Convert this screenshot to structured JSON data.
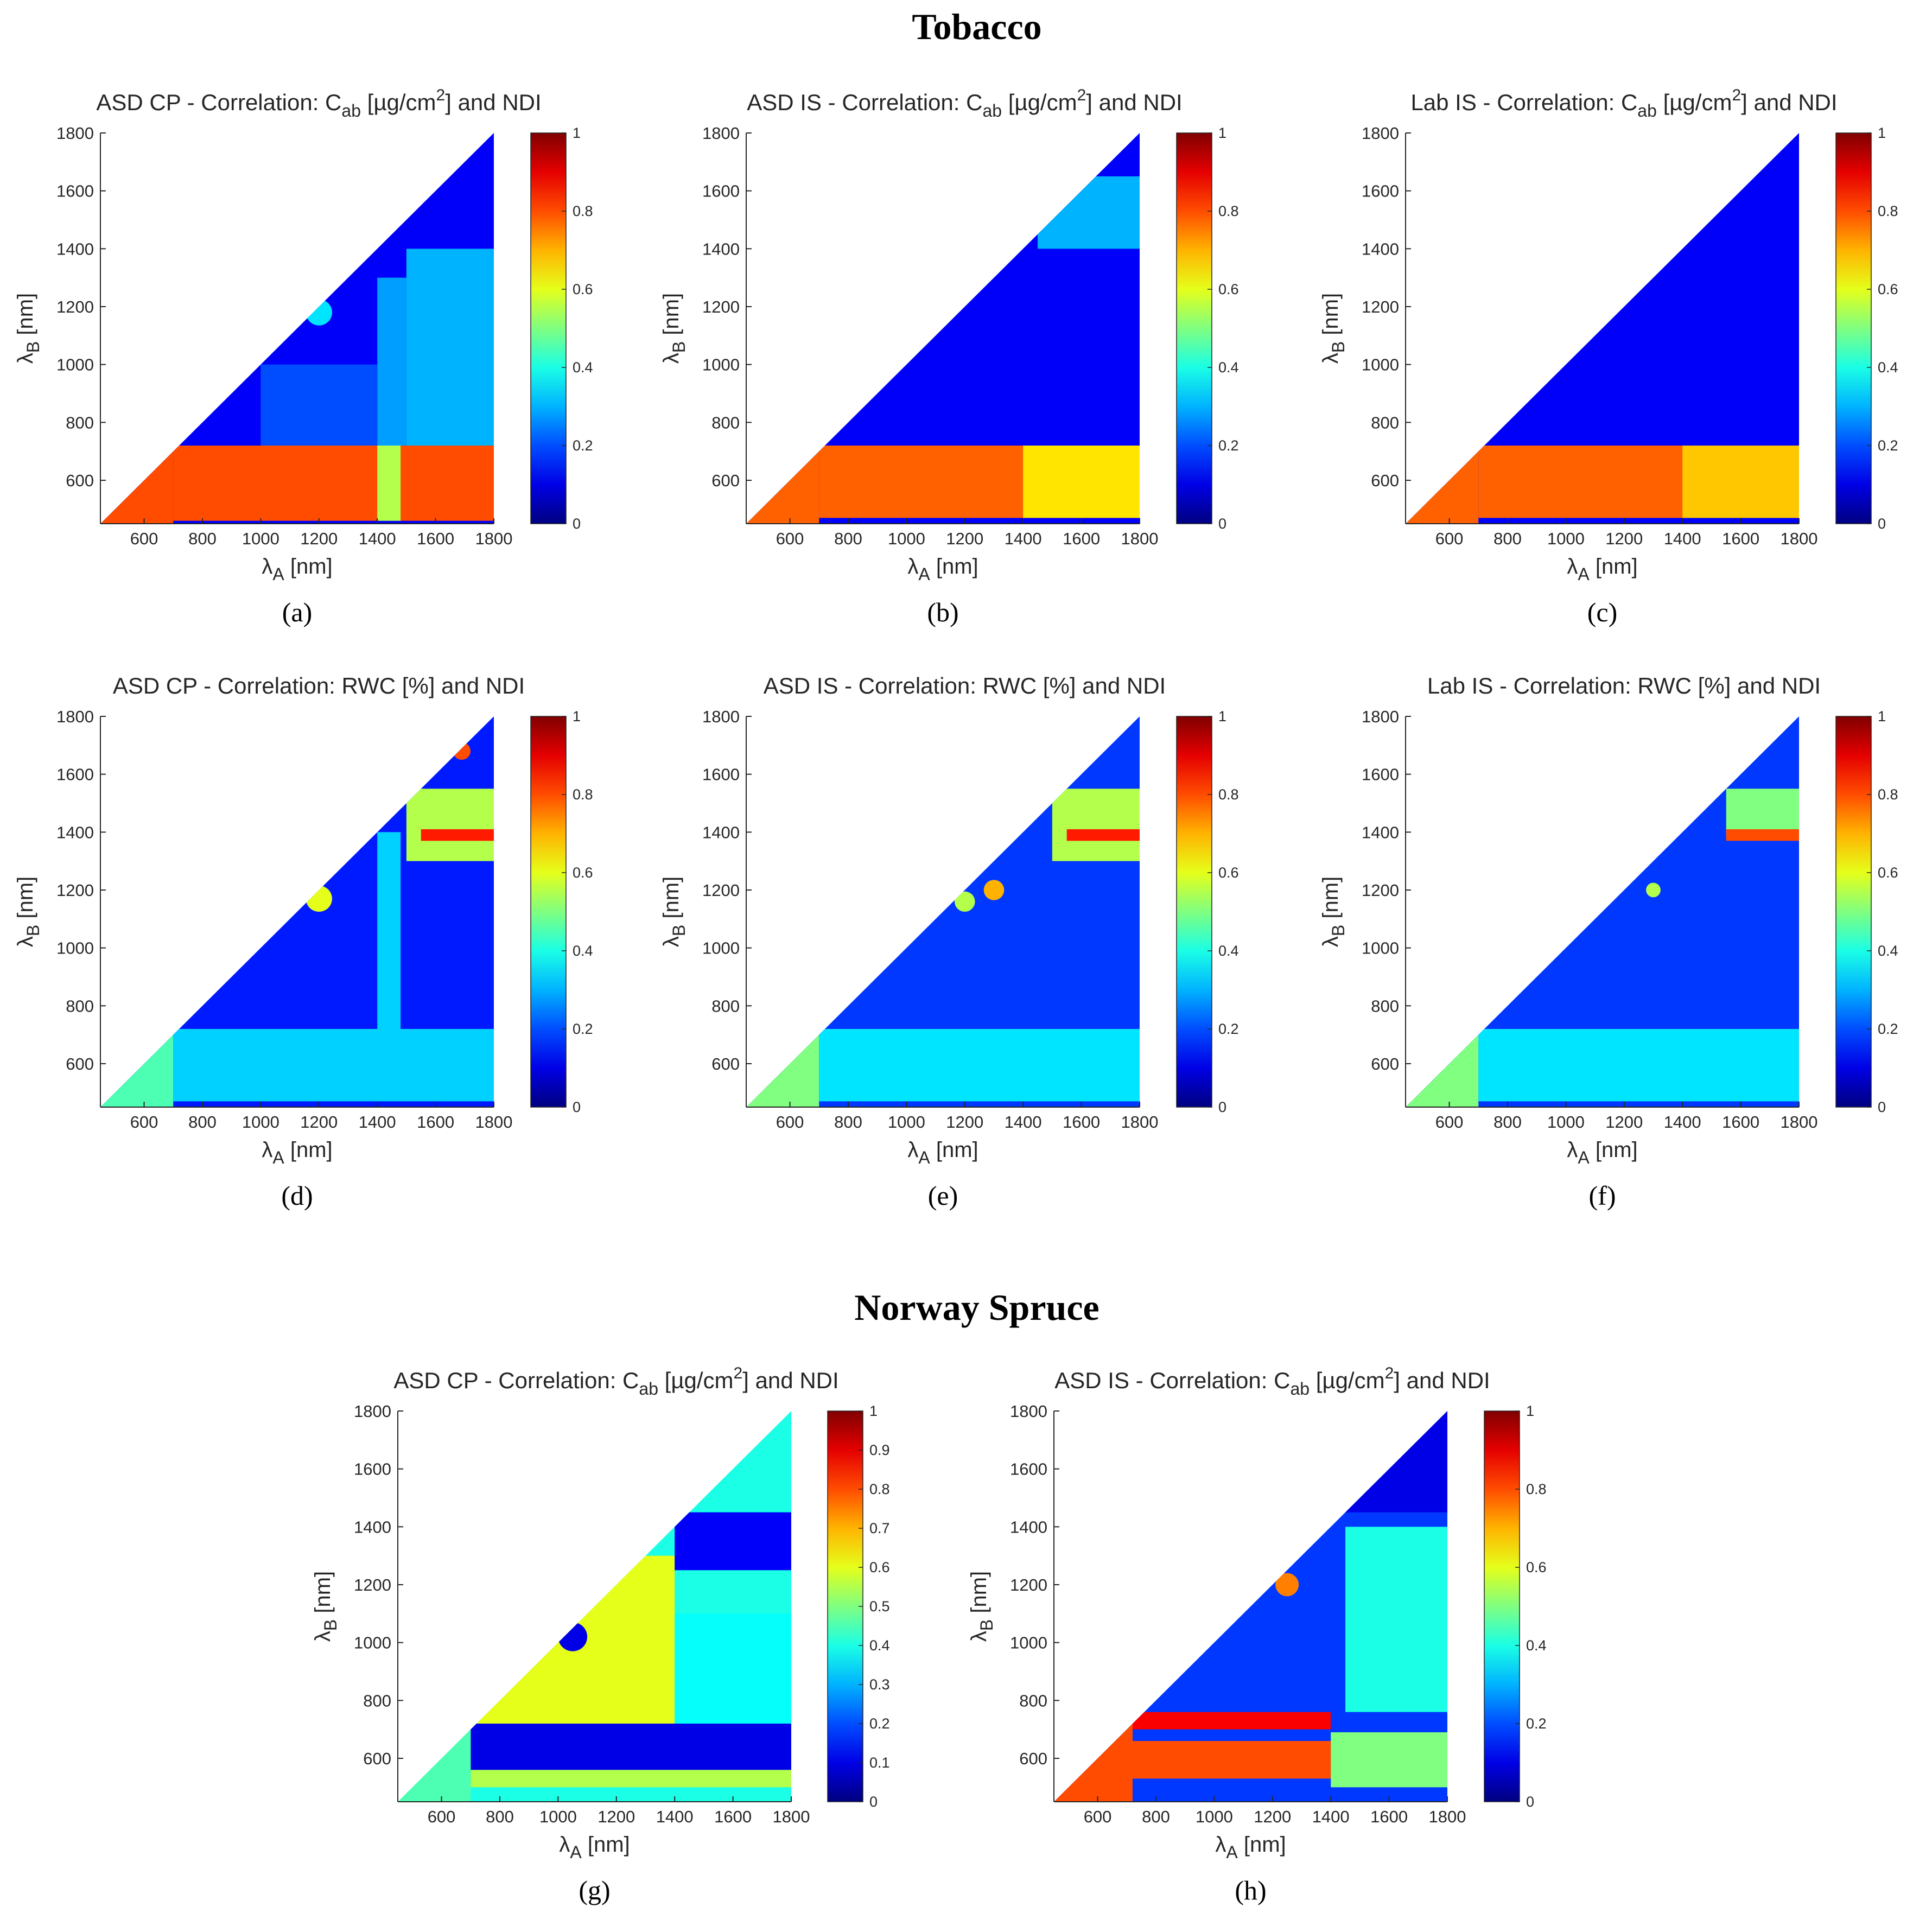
{
  "sections": [
    {
      "title": "Tobacco"
    },
    {
      "title": "Norway Spruce"
    }
  ],
  "chart_data": [
    {
      "type": "heatmap",
      "label": "(a)",
      "title_prefix": "ASD CP - Correlation: ",
      "variable": "C_ab",
      "unit": "µg/cm²",
      "title_suffix": "and NDI",
      "xlabel": "λ_A [nm]",
      "ylabel": "λ_B [nm]",
      "xlim": [
        450,
        1800
      ],
      "ylim": [
        450,
        1800
      ],
      "xticks": [
        600,
        800,
        1000,
        1200,
        1400,
        1600,
        1800
      ],
      "yticks": [
        600,
        800,
        1000,
        1200,
        1400,
        1600,
        1800
      ],
      "colorbar": {
        "min": 0,
        "max": 1,
        "ticks": [
          0,
          0.2,
          0.4,
          0.6,
          0.8,
          1
        ]
      },
      "base_value": 0.12,
      "features": [
        {
          "kind": "box",
          "x": [
            700,
            1800
          ],
          "y": [
            460,
            720
          ],
          "value": 0.8
        },
        {
          "kind": "box",
          "x": [
            1400,
            1480
          ],
          "y": [
            460,
            720
          ],
          "value": 0.55
        },
        {
          "kind": "box",
          "x": [
            1400,
            1500
          ],
          "y": [
            720,
            1300
          ],
          "value": 0.28
        },
        {
          "kind": "box",
          "x": [
            1500,
            1800
          ],
          "y": [
            720,
            1400
          ],
          "value": 0.3
        },
        {
          "kind": "box",
          "x": [
            1000,
            1400
          ],
          "y": [
            720,
            1000
          ],
          "value": 0.2
        },
        {
          "kind": "spot",
          "x": 1200,
          "y": 1180,
          "r": 45,
          "value": 0.35
        },
        {
          "kind": "diag",
          "x": [
            450,
            700
          ],
          "value": 0.8
        }
      ]
    },
    {
      "type": "heatmap",
      "label": "(b)",
      "title_prefix": "ASD IS - Correlation: ",
      "variable": "C_ab",
      "unit": "µg/cm²",
      "title_suffix": "and NDI",
      "xlabel": "λ_A [nm]",
      "ylabel": "λ_B [nm]",
      "xlim": [
        450,
        1800
      ],
      "ylim": [
        450,
        1800
      ],
      "xticks": [
        600,
        800,
        1000,
        1200,
        1400,
        1600,
        1800
      ],
      "yticks": [
        600,
        800,
        1000,
        1200,
        1400,
        1600,
        1800
      ],
      "colorbar": {
        "min": 0,
        "max": 1,
        "ticks": [
          0,
          0.2,
          0.4,
          0.6,
          0.8,
          1
        ]
      },
      "base_value": 0.12,
      "features": [
        {
          "kind": "box",
          "x": [
            700,
            1800
          ],
          "y": [
            470,
            720
          ],
          "value": 0.78
        },
        {
          "kind": "box",
          "x": [
            1400,
            1800
          ],
          "y": [
            470,
            720
          ],
          "value": 0.65
        },
        {
          "kind": "box",
          "x": [
            1450,
            1800
          ],
          "y": [
            1400,
            1650
          ],
          "value": 0.3
        },
        {
          "kind": "diag",
          "x": [
            450,
            700
          ],
          "value": 0.78
        }
      ]
    },
    {
      "type": "heatmap",
      "label": "(c)",
      "title_prefix": "Lab IS - Correlation: ",
      "variable": "C_ab",
      "unit": "µg/cm²",
      "title_suffix": "and NDI",
      "xlabel": "λ_A [nm]",
      "ylabel": "λ_B [nm]",
      "xlim": [
        450,
        1800
      ],
      "ylim": [
        450,
        1800
      ],
      "xticks": [
        600,
        800,
        1000,
        1200,
        1400,
        1600,
        1800
      ],
      "yticks": [
        600,
        800,
        1000,
        1200,
        1400,
        1600,
        1800
      ],
      "colorbar": {
        "min": 0,
        "max": 1,
        "ticks": [
          0,
          0.2,
          0.4,
          0.6,
          0.8,
          1
        ]
      },
      "base_value": 0.12,
      "features": [
        {
          "kind": "box",
          "x": [
            700,
            1800
          ],
          "y": [
            470,
            720
          ],
          "value": 0.78
        },
        {
          "kind": "box",
          "x": [
            1400,
            1800
          ],
          "y": [
            470,
            720
          ],
          "value": 0.68
        },
        {
          "kind": "diag",
          "x": [
            450,
            700
          ],
          "value": 0.78
        }
      ]
    },
    {
      "type": "heatmap",
      "label": "(d)",
      "title_prefix": "ASD CP - Correlation: ",
      "variable": "RWC",
      "unit": "%",
      "title_suffix": "and NDI",
      "xlabel": "λ_A [nm]",
      "ylabel": "λ_B [nm]",
      "xlim": [
        450,
        1800
      ],
      "ylim": [
        450,
        1800
      ],
      "xticks": [
        600,
        800,
        1000,
        1200,
        1400,
        1600,
        1800
      ],
      "yticks": [
        600,
        800,
        1000,
        1200,
        1400,
        1600,
        1800
      ],
      "colorbar": {
        "min": 0,
        "max": 1,
        "ticks": [
          0,
          0.2,
          0.4,
          0.6,
          0.8,
          1
        ]
      },
      "base_value": 0.15,
      "features": [
        {
          "kind": "box",
          "x": [
            700,
            1800
          ],
          "y": [
            470,
            720
          ],
          "value": 0.33
        },
        {
          "kind": "box",
          "x": [
            1400,
            1480
          ],
          "y": [
            720,
            1400
          ],
          "value": 0.33
        },
        {
          "kind": "box",
          "x": [
            1500,
            1800
          ],
          "y": [
            1300,
            1550
          ],
          "value": 0.55
        },
        {
          "kind": "box",
          "x": [
            1550,
            1800
          ],
          "y": [
            1370,
            1410
          ],
          "value": 0.85
        },
        {
          "kind": "spot",
          "x": 1200,
          "y": 1170,
          "r": 45,
          "value": 0.6
        },
        {
          "kind": "spot",
          "x": 1690,
          "y": 1680,
          "r": 30,
          "value": 0.8
        },
        {
          "kind": "diag",
          "x": [
            450,
            700
          ],
          "value": 0.45
        }
      ]
    },
    {
      "type": "heatmap",
      "label": "(e)",
      "title_prefix": "ASD IS - Correlation: ",
      "variable": "RWC",
      "unit": "%",
      "title_suffix": "and NDI",
      "xlabel": "λ_A [nm]",
      "ylabel": "λ_B [nm]",
      "xlim": [
        450,
        1800
      ],
      "ylim": [
        450,
        1800
      ],
      "xticks": [
        600,
        800,
        1000,
        1200,
        1400,
        1600,
        1800
      ],
      "yticks": [
        600,
        800,
        1000,
        1200,
        1400,
        1600,
        1800
      ],
      "colorbar": {
        "min": 0,
        "max": 1,
        "ticks": [
          0,
          0.2,
          0.4,
          0.6,
          0.8,
          1
        ]
      },
      "base_value": 0.18,
      "features": [
        {
          "kind": "box",
          "x": [
            700,
            1800
          ],
          "y": [
            470,
            720
          ],
          "value": 0.35
        },
        {
          "kind": "box",
          "x": [
            1500,
            1800
          ],
          "y": [
            1300,
            1550
          ],
          "value": 0.55
        },
        {
          "kind": "box",
          "x": [
            1550,
            1800
          ],
          "y": [
            1370,
            1410
          ],
          "value": 0.85
        },
        {
          "kind": "spot",
          "x": 1300,
          "y": 1200,
          "r": 35,
          "value": 0.7
        },
        {
          "kind": "spot",
          "x": 1200,
          "y": 1160,
          "r": 35,
          "value": 0.55
        },
        {
          "kind": "diag",
          "x": [
            450,
            700
          ],
          "value": 0.5
        }
      ]
    },
    {
      "type": "heatmap",
      "label": "(f)",
      "title_prefix": "Lab IS - Correlation: ",
      "variable": "RWC",
      "unit": "%",
      "title_suffix": "and NDI",
      "xlabel": "λ_A [nm]",
      "ylabel": "λ_B [nm]",
      "xlim": [
        450,
        1800
      ],
      "ylim": [
        450,
        1800
      ],
      "xticks": [
        600,
        800,
        1000,
        1200,
        1400,
        1600,
        1800
      ],
      "yticks": [
        600,
        800,
        1000,
        1200,
        1400,
        1600,
        1800
      ],
      "colorbar": {
        "min": 0,
        "max": 1,
        "ticks": [
          0,
          0.2,
          0.4,
          0.6,
          0.8,
          1
        ]
      },
      "base_value": 0.18,
      "features": [
        {
          "kind": "box",
          "x": [
            700,
            1800
          ],
          "y": [
            470,
            720
          ],
          "value": 0.35
        },
        {
          "kind": "box",
          "x": [
            1550,
            1800
          ],
          "y": [
            1380,
            1550
          ],
          "value": 0.5
        },
        {
          "kind": "box",
          "x": [
            1550,
            1800
          ],
          "y": [
            1370,
            1410
          ],
          "value": 0.8
        },
        {
          "kind": "spot",
          "x": 1300,
          "y": 1200,
          "r": 25,
          "value": 0.55
        },
        {
          "kind": "diag",
          "x": [
            450,
            700
          ],
          "value": 0.5
        }
      ]
    },
    {
      "type": "heatmap",
      "label": "(g)",
      "title_prefix": "ASD CP - Correlation: ",
      "variable": "C_ab",
      "unit": "µg/cm²",
      "title_suffix": "and NDI",
      "xlabel": "λ_A [nm]",
      "ylabel": "λ_B [nm]",
      "xlim": [
        450,
        1800
      ],
      "ylim": [
        450,
        1800
      ],
      "xticks": [
        600,
        800,
        1000,
        1200,
        1400,
        1600,
        1800
      ],
      "yticks": [
        600,
        800,
        1000,
        1200,
        1400,
        1600,
        1800
      ],
      "colorbar": {
        "min": 0,
        "max": 1,
        "ticks": [
          0,
          0.1,
          0.2,
          0.3,
          0.4,
          0.5,
          0.6,
          0.7,
          0.8,
          0.9,
          1
        ]
      },
      "base_value": 0.4,
      "features": [
        {
          "kind": "box",
          "x": [
            720,
            1400
          ],
          "y": [
            720,
            1300
          ],
          "value": 0.6
        },
        {
          "kind": "box",
          "x": [
            1400,
            1800
          ],
          "y": [
            720,
            1100
          ],
          "value": 0.38
        },
        {
          "kind": "box",
          "x": [
            1400,
            1800
          ],
          "y": [
            1250,
            1450
          ],
          "value": 0.12
        },
        {
          "kind": "box",
          "x": [
            700,
            1800
          ],
          "y": [
            560,
            720
          ],
          "value": 0.1
        },
        {
          "kind": "box",
          "x": [
            700,
            1800
          ],
          "y": [
            500,
            560
          ],
          "value": 0.55
        },
        {
          "kind": "spot",
          "x": 1050,
          "y": 1020,
          "r": 50,
          "value": 0.1
        },
        {
          "kind": "diag",
          "x": [
            450,
            700
          ],
          "value": 0.45
        }
      ]
    },
    {
      "type": "heatmap",
      "label": "(h)",
      "title_prefix": "ASD IS - Correlation: ",
      "variable": "C_ab",
      "unit": "µg/cm²",
      "title_suffix": "and NDI",
      "xlabel": "λ_A [nm]",
      "ylabel": "λ_B [nm]",
      "xlim": [
        450,
        1800
      ],
      "ylim": [
        450,
        1800
      ],
      "xticks": [
        600,
        800,
        1000,
        1200,
        1400,
        1600,
        1800
      ],
      "yticks": [
        600,
        800,
        1000,
        1200,
        1400,
        1600,
        1800
      ],
      "colorbar": {
        "min": 0,
        "max": 1,
        "ticks": [
          0,
          0.2,
          0.4,
          0.6,
          0.8,
          1
        ]
      },
      "base_value": 0.18,
      "features": [
        {
          "kind": "box",
          "x": [
            720,
            1400
          ],
          "y": [
            700,
            760
          ],
          "value": 0.88
        },
        {
          "kind": "box",
          "x": [
            720,
            1400
          ],
          "y": [
            530,
            660
          ],
          "value": 0.8
        },
        {
          "kind": "box",
          "x": [
            1400,
            1800
          ],
          "y": [
            500,
            690
          ],
          "value": 0.5
        },
        {
          "kind": "box",
          "x": [
            1450,
            1800
          ],
          "y": [
            760,
            1400
          ],
          "value": 0.4
        },
        {
          "kind": "box",
          "x": [
            1450,
            1800
          ],
          "y": [
            1450,
            1800
          ],
          "value": 0.1
        },
        {
          "kind": "spot",
          "x": 1250,
          "y": 1200,
          "r": 40,
          "value": 0.75
        },
        {
          "kind": "diag",
          "x": [
            450,
            720
          ],
          "value": 0.8
        }
      ]
    }
  ]
}
